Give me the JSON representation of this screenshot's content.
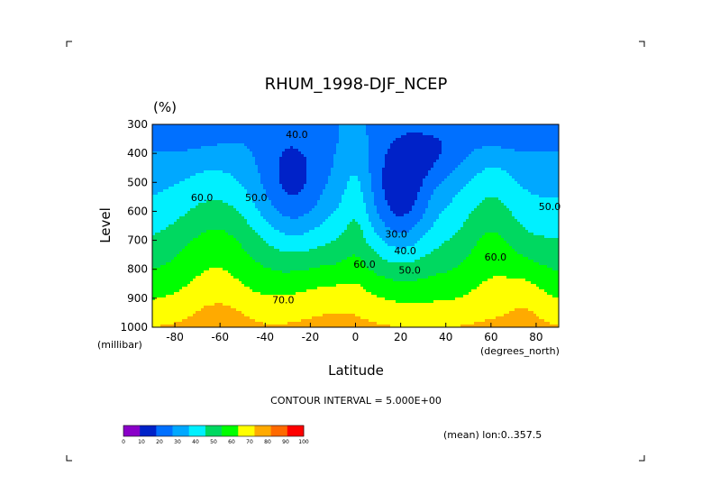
{
  "chart_data": {
    "type": "contour",
    "title": "RHUM_1998-DJF_NCEP",
    "units": "(%)",
    "xlabel": "Latitude",
    "ylabel": "Level",
    "x_units": "(degrees_north)",
    "y_units": "(millibar)",
    "xlim": [
      -90,
      90
    ],
    "ylim": [
      1000,
      300
    ],
    "x_ticks": [
      -80,
      -60,
      -40,
      -20,
      0,
      20,
      40,
      60,
      80
    ],
    "y_ticks": [
      300,
      400,
      500,
      600,
      700,
      800,
      900,
      1000
    ],
    "contour_interval_text": "CONTOUR INTERVAL = 5.000E+00",
    "contour_interval": 5,
    "mean_text": "(mean) lon:0..357.5",
    "contour_labels": [
      {
        "text": "40.0",
        "lat": -26,
        "level": 347
      },
      {
        "text": "60.0",
        "lat": -68,
        "level": 565
      },
      {
        "text": "50.0",
        "lat": -44,
        "level": 565
      },
      {
        "text": "30.0",
        "lat": 18,
        "level": 690
      },
      {
        "text": "40.0",
        "lat": 22,
        "level": 748
      },
      {
        "text": "60.0",
        "lat": 4,
        "level": 795
      },
      {
        "text": "50.0",
        "lat": 24,
        "level": 815
      },
      {
        "text": "70.0",
        "lat": -32,
        "level": 917
      },
      {
        "text": "60.0",
        "lat": 62,
        "level": 770
      },
      {
        "text": "50.0",
        "lat": 86,
        "level": 595
      }
    ],
    "colorbar": {
      "ticks": [
        "0",
        "10",
        "20",
        "30",
        "40",
        "50",
        "60",
        "70",
        "80",
        "90",
        "100"
      ],
      "colors": [
        "#8a00c8",
        "#0022c8",
        "#0070ff",
        "#00a8ff",
        "#00f0ff",
        "#00d860",
        "#00ff00",
        "#ffff00",
        "#ffaa00",
        "#ff6a00",
        "#ff0000"
      ]
    }
  }
}
